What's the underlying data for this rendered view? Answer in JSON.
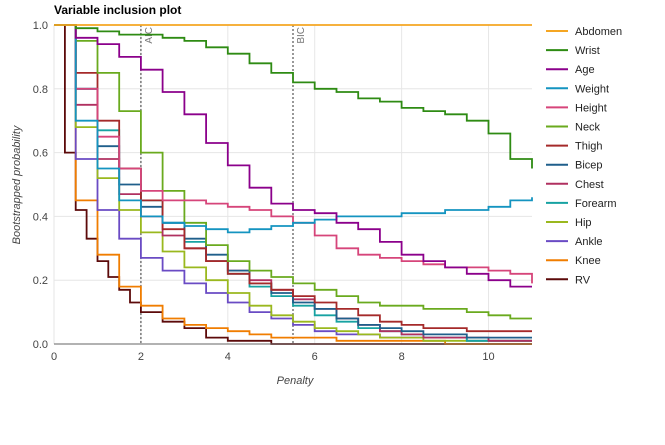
{
  "chart_data": {
    "type": "line",
    "title": "Variable inclusion plot",
    "xlabel": "Penalty",
    "ylabel": "Bootstrapped probability",
    "xlim": [
      0,
      11
    ],
    "ylim": [
      0,
      1
    ],
    "xticks": [
      "0",
      "2",
      "4",
      "6",
      "8",
      "10"
    ],
    "yticks": [
      "0.0",
      "0.2",
      "0.4",
      "0.6",
      "0.8",
      "1.0"
    ],
    "grid": true,
    "legend_position": "right",
    "annotations": [
      {
        "label": "AIC",
        "x": 2
      },
      {
        "label": "BIC",
        "x": 5.5
      }
    ],
    "series": [
      {
        "name": "Abdomen",
        "color": "#f5a623",
        "x": [
          0,
          11
        ],
        "y": [
          1.0,
          1.0
        ]
      },
      {
        "name": "Wrist",
        "color": "#2e8b13",
        "x": [
          0,
          0.5,
          1.0,
          1.5,
          2.0,
          2.5,
          3.0,
          3.5,
          4.0,
          4.5,
          5.0,
          5.5,
          6.0,
          6.5,
          7.0,
          7.5,
          8.0,
          8.5,
          9.0,
          9.5,
          10.0,
          10.5,
          11.0
        ],
        "y": [
          1.0,
          0.99,
          0.98,
          0.97,
          0.97,
          0.96,
          0.95,
          0.93,
          0.91,
          0.88,
          0.85,
          0.82,
          0.8,
          0.79,
          0.77,
          0.76,
          0.74,
          0.73,
          0.72,
          0.7,
          0.66,
          0.58,
          0.55
        ]
      },
      {
        "name": "Age",
        "color": "#8b008b",
        "x": [
          0,
          0.5,
          1.0,
          1.5,
          2.0,
          2.5,
          3.0,
          3.5,
          4.0,
          4.5,
          5.0,
          5.5,
          6.0,
          6.5,
          7.0,
          7.5,
          8.0,
          8.5,
          9.0,
          9.5,
          10.0,
          10.5,
          11.0
        ],
        "y": [
          1.0,
          0.96,
          0.94,
          0.9,
          0.86,
          0.79,
          0.72,
          0.63,
          0.56,
          0.49,
          0.44,
          0.42,
          0.41,
          0.38,
          0.36,
          0.32,
          0.28,
          0.26,
          0.24,
          0.22,
          0.2,
          0.18,
          0.18
        ]
      },
      {
        "name": "Weight",
        "color": "#1494c0",
        "x": [
          0,
          0.5,
          1.0,
          1.5,
          2.0,
          2.5,
          3.0,
          3.5,
          4.0,
          4.5,
          5.0,
          5.5,
          6.0,
          6.5,
          7.0,
          7.5,
          8.0,
          8.5,
          9.0,
          9.5,
          10.0,
          10.5,
          11.0
        ],
        "y": [
          1.0,
          0.7,
          0.55,
          0.45,
          0.4,
          0.38,
          0.37,
          0.36,
          0.35,
          0.36,
          0.37,
          0.38,
          0.39,
          0.4,
          0.4,
          0.4,
          0.41,
          0.41,
          0.42,
          0.42,
          0.43,
          0.45,
          0.46
        ]
      },
      {
        "name": "Height",
        "color": "#d6457a",
        "x": [
          0,
          0.5,
          1.0,
          1.5,
          2.0,
          2.5,
          3.0,
          3.5,
          4.0,
          4.5,
          5.0,
          5.5,
          6.0,
          6.5,
          7.0,
          7.5,
          8.0,
          8.5,
          9.0,
          9.5,
          10.0,
          10.5,
          11.0
        ],
        "y": [
          1.0,
          0.8,
          0.65,
          0.55,
          0.48,
          0.45,
          0.45,
          0.44,
          0.43,
          0.42,
          0.4,
          0.38,
          0.34,
          0.3,
          0.28,
          0.27,
          0.26,
          0.25,
          0.24,
          0.24,
          0.23,
          0.22,
          0.19
        ]
      },
      {
        "name": "Neck",
        "color": "#6aaa1e",
        "x": [
          0,
          0.5,
          1.0,
          1.5,
          2.0,
          2.5,
          3.0,
          3.5,
          4.0,
          4.5,
          5.0,
          5.5,
          6.0,
          6.5,
          7.0,
          7.5,
          8.0,
          8.5,
          9.0,
          9.5,
          10.0,
          10.5,
          11.0
        ],
        "y": [
          1.0,
          0.95,
          0.85,
          0.73,
          0.6,
          0.48,
          0.38,
          0.31,
          0.26,
          0.23,
          0.21,
          0.19,
          0.17,
          0.15,
          0.13,
          0.12,
          0.12,
          0.11,
          0.11,
          0.1,
          0.09,
          0.08,
          0.08
        ]
      },
      {
        "name": "Thigh",
        "color": "#a52a2a",
        "x": [
          0,
          0.5,
          1.0,
          1.5,
          2.0,
          2.5,
          3.0,
          3.5,
          4.0,
          4.5,
          5.0,
          5.5,
          6.0,
          6.5,
          7.0,
          7.5,
          8.0,
          8.5,
          9.0,
          9.5,
          10.0,
          10.5,
          11.0
        ],
        "y": [
          1.0,
          0.85,
          0.7,
          0.55,
          0.45,
          0.36,
          0.3,
          0.26,
          0.22,
          0.19,
          0.17,
          0.15,
          0.13,
          0.11,
          0.09,
          0.07,
          0.06,
          0.05,
          0.05,
          0.04,
          0.04,
          0.04,
          0.04
        ]
      },
      {
        "name": "Bicep",
        "color": "#1f5f8b",
        "x": [
          0,
          0.5,
          1.0,
          1.5,
          2.0,
          2.5,
          3.0,
          3.5,
          4.0,
          4.5,
          5.0,
          5.5,
          6.0,
          6.5,
          7.0,
          7.5,
          8.0,
          8.5,
          9.0,
          9.5,
          10.0,
          10.5,
          11.0
        ],
        "y": [
          1.0,
          0.8,
          0.62,
          0.5,
          0.43,
          0.38,
          0.33,
          0.28,
          0.23,
          0.19,
          0.16,
          0.13,
          0.11,
          0.08,
          0.06,
          0.05,
          0.04,
          0.03,
          0.03,
          0.02,
          0.02,
          0.02,
          0.02
        ]
      },
      {
        "name": "Chest",
        "color": "#b03060",
        "x": [
          0,
          0.5,
          1.0,
          1.5,
          2.0,
          2.5,
          3.0,
          3.5,
          4.0,
          4.5,
          5.0,
          5.5,
          6.0,
          6.5,
          7.0,
          7.5,
          8.0,
          8.5,
          9.0,
          9.5,
          10.0,
          10.5,
          11.0
        ],
        "y": [
          1.0,
          0.75,
          0.58,
          0.47,
          0.4,
          0.34,
          0.3,
          0.26,
          0.23,
          0.2,
          0.17,
          0.14,
          0.11,
          0.08,
          0.06,
          0.04,
          0.03,
          0.02,
          0.02,
          0.02,
          0.01,
          0.01,
          0.01
        ]
      },
      {
        "name": "Forearm",
        "color": "#17a2a2",
        "x": [
          0,
          0.5,
          1.0,
          1.5,
          2.0,
          2.5,
          3.0,
          3.5,
          4.0,
          4.5,
          5.0,
          5.5,
          6.0,
          6.5,
          7.0,
          7.5,
          8.0,
          8.5,
          9.0,
          9.5,
          10.0,
          10.5,
          11.0
        ],
        "y": [
          1.0,
          0.8,
          0.67,
          0.55,
          0.45,
          0.38,
          0.32,
          0.26,
          0.22,
          0.18,
          0.15,
          0.12,
          0.09,
          0.07,
          0.05,
          0.04,
          0.03,
          0.02,
          0.02,
          0.01,
          0.01,
          0.01,
          0.01
        ]
      },
      {
        "name": "Hip",
        "color": "#9ab81e",
        "x": [
          0,
          0.5,
          1.0,
          1.5,
          2.0,
          2.5,
          3.0,
          3.5,
          4.0,
          4.5,
          5.0,
          5.5,
          6.0,
          6.5,
          7.0,
          7.5,
          8.0,
          8.5,
          9.0,
          9.5,
          10.0,
          10.5,
          11.0
        ],
        "y": [
          1.0,
          0.68,
          0.52,
          0.42,
          0.35,
          0.29,
          0.24,
          0.2,
          0.16,
          0.12,
          0.09,
          0.07,
          0.05,
          0.04,
          0.03,
          0.02,
          0.02,
          0.01,
          0.01,
          0.01,
          0.01,
          0.01,
          0.01
        ]
      },
      {
        "name": "Ankle",
        "color": "#6a4bc4",
        "x": [
          0,
          0.5,
          1.0,
          1.5,
          2.0,
          2.5,
          3.0,
          3.5,
          4.0,
          4.5,
          5.0,
          5.5,
          6.0,
          6.5,
          7.0,
          7.5,
          8.0,
          8.5,
          9.0,
          9.5,
          10.0,
          10.5,
          11.0
        ],
        "y": [
          1.0,
          0.58,
          0.42,
          0.33,
          0.27,
          0.23,
          0.19,
          0.16,
          0.13,
          0.1,
          0.08,
          0.06,
          0.04,
          0.03,
          0.03,
          0.02,
          0.02,
          0.02,
          0.02,
          0.01,
          0.01,
          0.01,
          0.01
        ]
      },
      {
        "name": "Knee",
        "color": "#f07d00",
        "x": [
          0,
          0.5,
          1.0,
          1.5,
          2.0,
          2.5,
          3.0,
          3.5,
          4.0,
          4.5,
          5.0,
          5.5,
          6.0,
          6.5,
          7.0,
          7.5,
          8.0,
          8.5,
          9.0,
          9.5,
          10.0,
          10.5,
          11.0
        ],
        "y": [
          1.0,
          0.45,
          0.28,
          0.18,
          0.12,
          0.08,
          0.06,
          0.05,
          0.04,
          0.03,
          0.02,
          0.02,
          0.02,
          0.01,
          0.01,
          0.01,
          0.01,
          0.01,
          0.0,
          0.0,
          0.0,
          0.0,
          0.0
        ]
      },
      {
        "name": "RV",
        "color": "#5c0a0a",
        "x": [
          0,
          0.25,
          0.5,
          0.75,
          1.0,
          1.25,
          1.5,
          1.75,
          2.0,
          2.5,
          3.0,
          3.5,
          4.0,
          4.5,
          5.0,
          5.5,
          6.0
        ],
        "y": [
          1.0,
          0.6,
          0.42,
          0.33,
          0.26,
          0.21,
          0.17,
          0.13,
          0.1,
          0.07,
          0.05,
          0.02,
          0.01,
          0.01,
          0.0,
          0.0,
          0.0
        ]
      }
    ]
  }
}
